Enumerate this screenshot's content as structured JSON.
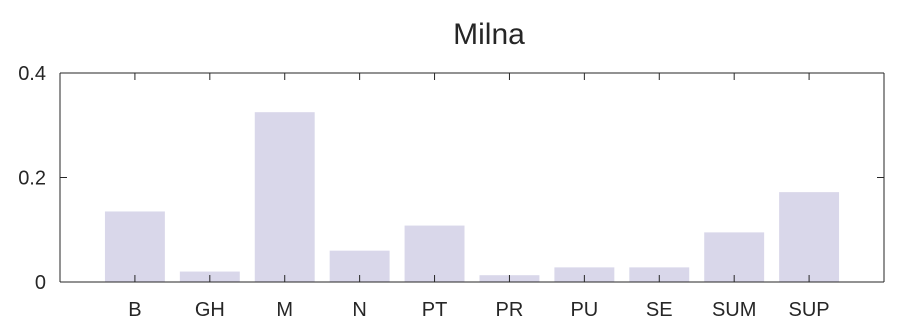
{
  "chart_data": {
    "type": "bar",
    "title": "Milna",
    "xlabel": "",
    "ylabel": "",
    "categories": [
      "B",
      "GH",
      "M",
      "N",
      "PT",
      "PR",
      "PU",
      "SE",
      "SUM",
      "SUP"
    ],
    "values": [
      0.135,
      0.02,
      0.325,
      0.06,
      0.108,
      0.013,
      0.028,
      0.028,
      0.095,
      0.172
    ],
    "ylim": [
      0,
      0.4
    ],
    "yticks": [
      0,
      0.2,
      0.4
    ],
    "ytick_labels": [
      "0",
      "0.2",
      "0.4"
    ],
    "bar_color": "#d9d7ea",
    "axis_color": "#262626",
    "grid": false,
    "box": true
  }
}
